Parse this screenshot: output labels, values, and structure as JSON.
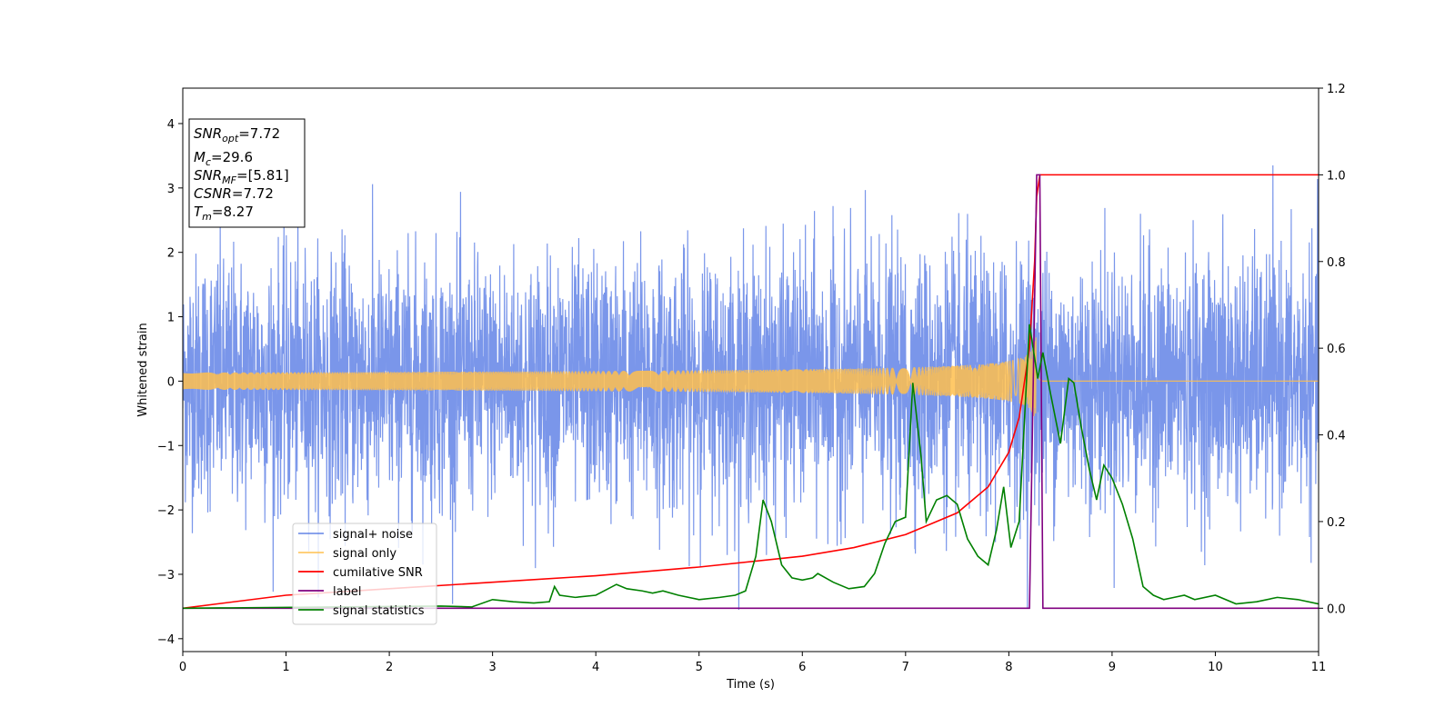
{
  "chart_data": {
    "type": "line",
    "xlabel": "Time (s)",
    "ylabel": "Whitened strain",
    "xlim": [
      0,
      11
    ],
    "ylim": [
      -4.2,
      4.55
    ],
    "y2lim": [
      -0.1,
      1.2
    ],
    "x_ticks": [
      "0",
      "1",
      "2",
      "3",
      "4",
      "5",
      "6",
      "7",
      "8",
      "9",
      "10",
      "11"
    ],
    "y_ticks": [
      "−4",
      "−3",
      "−2",
      "−1",
      "0",
      "1",
      "2",
      "3",
      "4"
    ],
    "y2_ticks": [
      "0.0",
      "0.2",
      "0.4",
      "0.6",
      "0.8",
      "1.0",
      "1.2"
    ],
    "grid": false,
    "legend": {
      "position": "lower-left",
      "entries": [
        {
          "label": "signal+ noise",
          "color": "#4169e1"
        },
        {
          "label": "signal only",
          "color": "#ffc04d"
        },
        {
          "label": "cumilative SNR",
          "color": "#ff0000"
        },
        {
          "label": "label",
          "color": "#800080"
        },
        {
          "label": "signal statistics",
          "color": "#008000"
        }
      ]
    },
    "info_box": {
      "lines": [
        {
          "sym": "SNR",
          "sub": "opt",
          "value": "=7.72"
        },
        {
          "sym": "M",
          "sub": "c",
          "value": "=29.6"
        },
        {
          "sym": "SNR",
          "sub": "MF",
          "value": "=[5.81]"
        },
        {
          "sym": "CSNR",
          "sub": "",
          "value": "=7.72"
        },
        {
          "sym": "T",
          "sub": "m",
          "value": "=8.27"
        }
      ]
    },
    "series": [
      {
        "name": "signal+ noise",
        "axis": "left",
        "color": "#4169e1",
        "description_sigma": 1.0,
        "merger_time": 8.27,
        "duration": 11
      },
      {
        "name": "signal only",
        "axis": "left",
        "color": "#ffc04d",
        "merger_time": 8.27,
        "peak_amplitude": 0.9
      },
      {
        "name": "cumilative SNR",
        "axis": "right",
        "color": "#ff0000",
        "x": [
          0,
          1,
          2,
          3,
          4,
          5,
          6,
          6.5,
          7,
          7.5,
          7.8,
          8.0,
          8.1,
          8.2,
          8.25,
          8.27,
          8.3,
          11
        ],
        "y": [
          0.0,
          0.03,
          0.045,
          0.06,
          0.075,
          0.095,
          0.12,
          0.14,
          0.17,
          0.22,
          0.28,
          0.36,
          0.44,
          0.6,
          0.8,
          0.95,
          1.0,
          1.0
        ]
      },
      {
        "name": "label",
        "axis": "right",
        "color": "#800080",
        "x": [
          0,
          8.2,
          8.27,
          8.3,
          8.33,
          11
        ],
        "y": [
          0,
          0,
          1.0,
          1.0,
          0,
          0
        ]
      },
      {
        "name": "signal statistics",
        "axis": "right",
        "color": "#008000",
        "x": [
          0,
          2.5,
          2.8,
          3.0,
          3.2,
          3.4,
          3.55,
          3.6,
          3.65,
          3.8,
          4.0,
          4.2,
          4.3,
          4.45,
          4.55,
          4.65,
          4.8,
          5.0,
          5.2,
          5.35,
          5.45,
          5.55,
          5.62,
          5.7,
          5.8,
          5.9,
          6.0,
          6.1,
          6.15,
          6.3,
          6.45,
          6.6,
          6.7,
          6.8,
          6.9,
          7.0,
          7.07,
          7.15,
          7.2,
          7.3,
          7.4,
          7.5,
          7.6,
          7.7,
          7.8,
          7.88,
          7.95,
          8.02,
          8.1,
          8.2,
          8.28,
          8.33,
          8.4,
          8.5,
          8.58,
          8.63,
          8.7,
          8.78,
          8.85,
          8.92,
          9.0,
          9.1,
          9.2,
          9.3,
          9.4,
          9.5,
          9.6,
          9.7,
          9.8,
          10.0,
          10.2,
          10.4,
          10.6,
          10.8,
          11.0
        ],
        "y": [
          0.0,
          0.005,
          0.003,
          0.02,
          0.015,
          0.012,
          0.015,
          0.05,
          0.03,
          0.025,
          0.03,
          0.055,
          0.045,
          0.04,
          0.035,
          0.04,
          0.03,
          0.02,
          0.025,
          0.03,
          0.04,
          0.12,
          0.25,
          0.2,
          0.1,
          0.07,
          0.065,
          0.07,
          0.08,
          0.06,
          0.045,
          0.05,
          0.08,
          0.15,
          0.2,
          0.21,
          0.52,
          0.35,
          0.2,
          0.25,
          0.26,
          0.24,
          0.16,
          0.12,
          0.1,
          0.18,
          0.28,
          0.14,
          0.2,
          0.655,
          0.53,
          0.59,
          0.5,
          0.38,
          0.53,
          0.52,
          0.42,
          0.32,
          0.25,
          0.33,
          0.3,
          0.24,
          0.16,
          0.05,
          0.03,
          0.02,
          0.025,
          0.03,
          0.02,
          0.03,
          0.01,
          0.015,
          0.025,
          0.02,
          0.01
        ]
      }
    ]
  }
}
